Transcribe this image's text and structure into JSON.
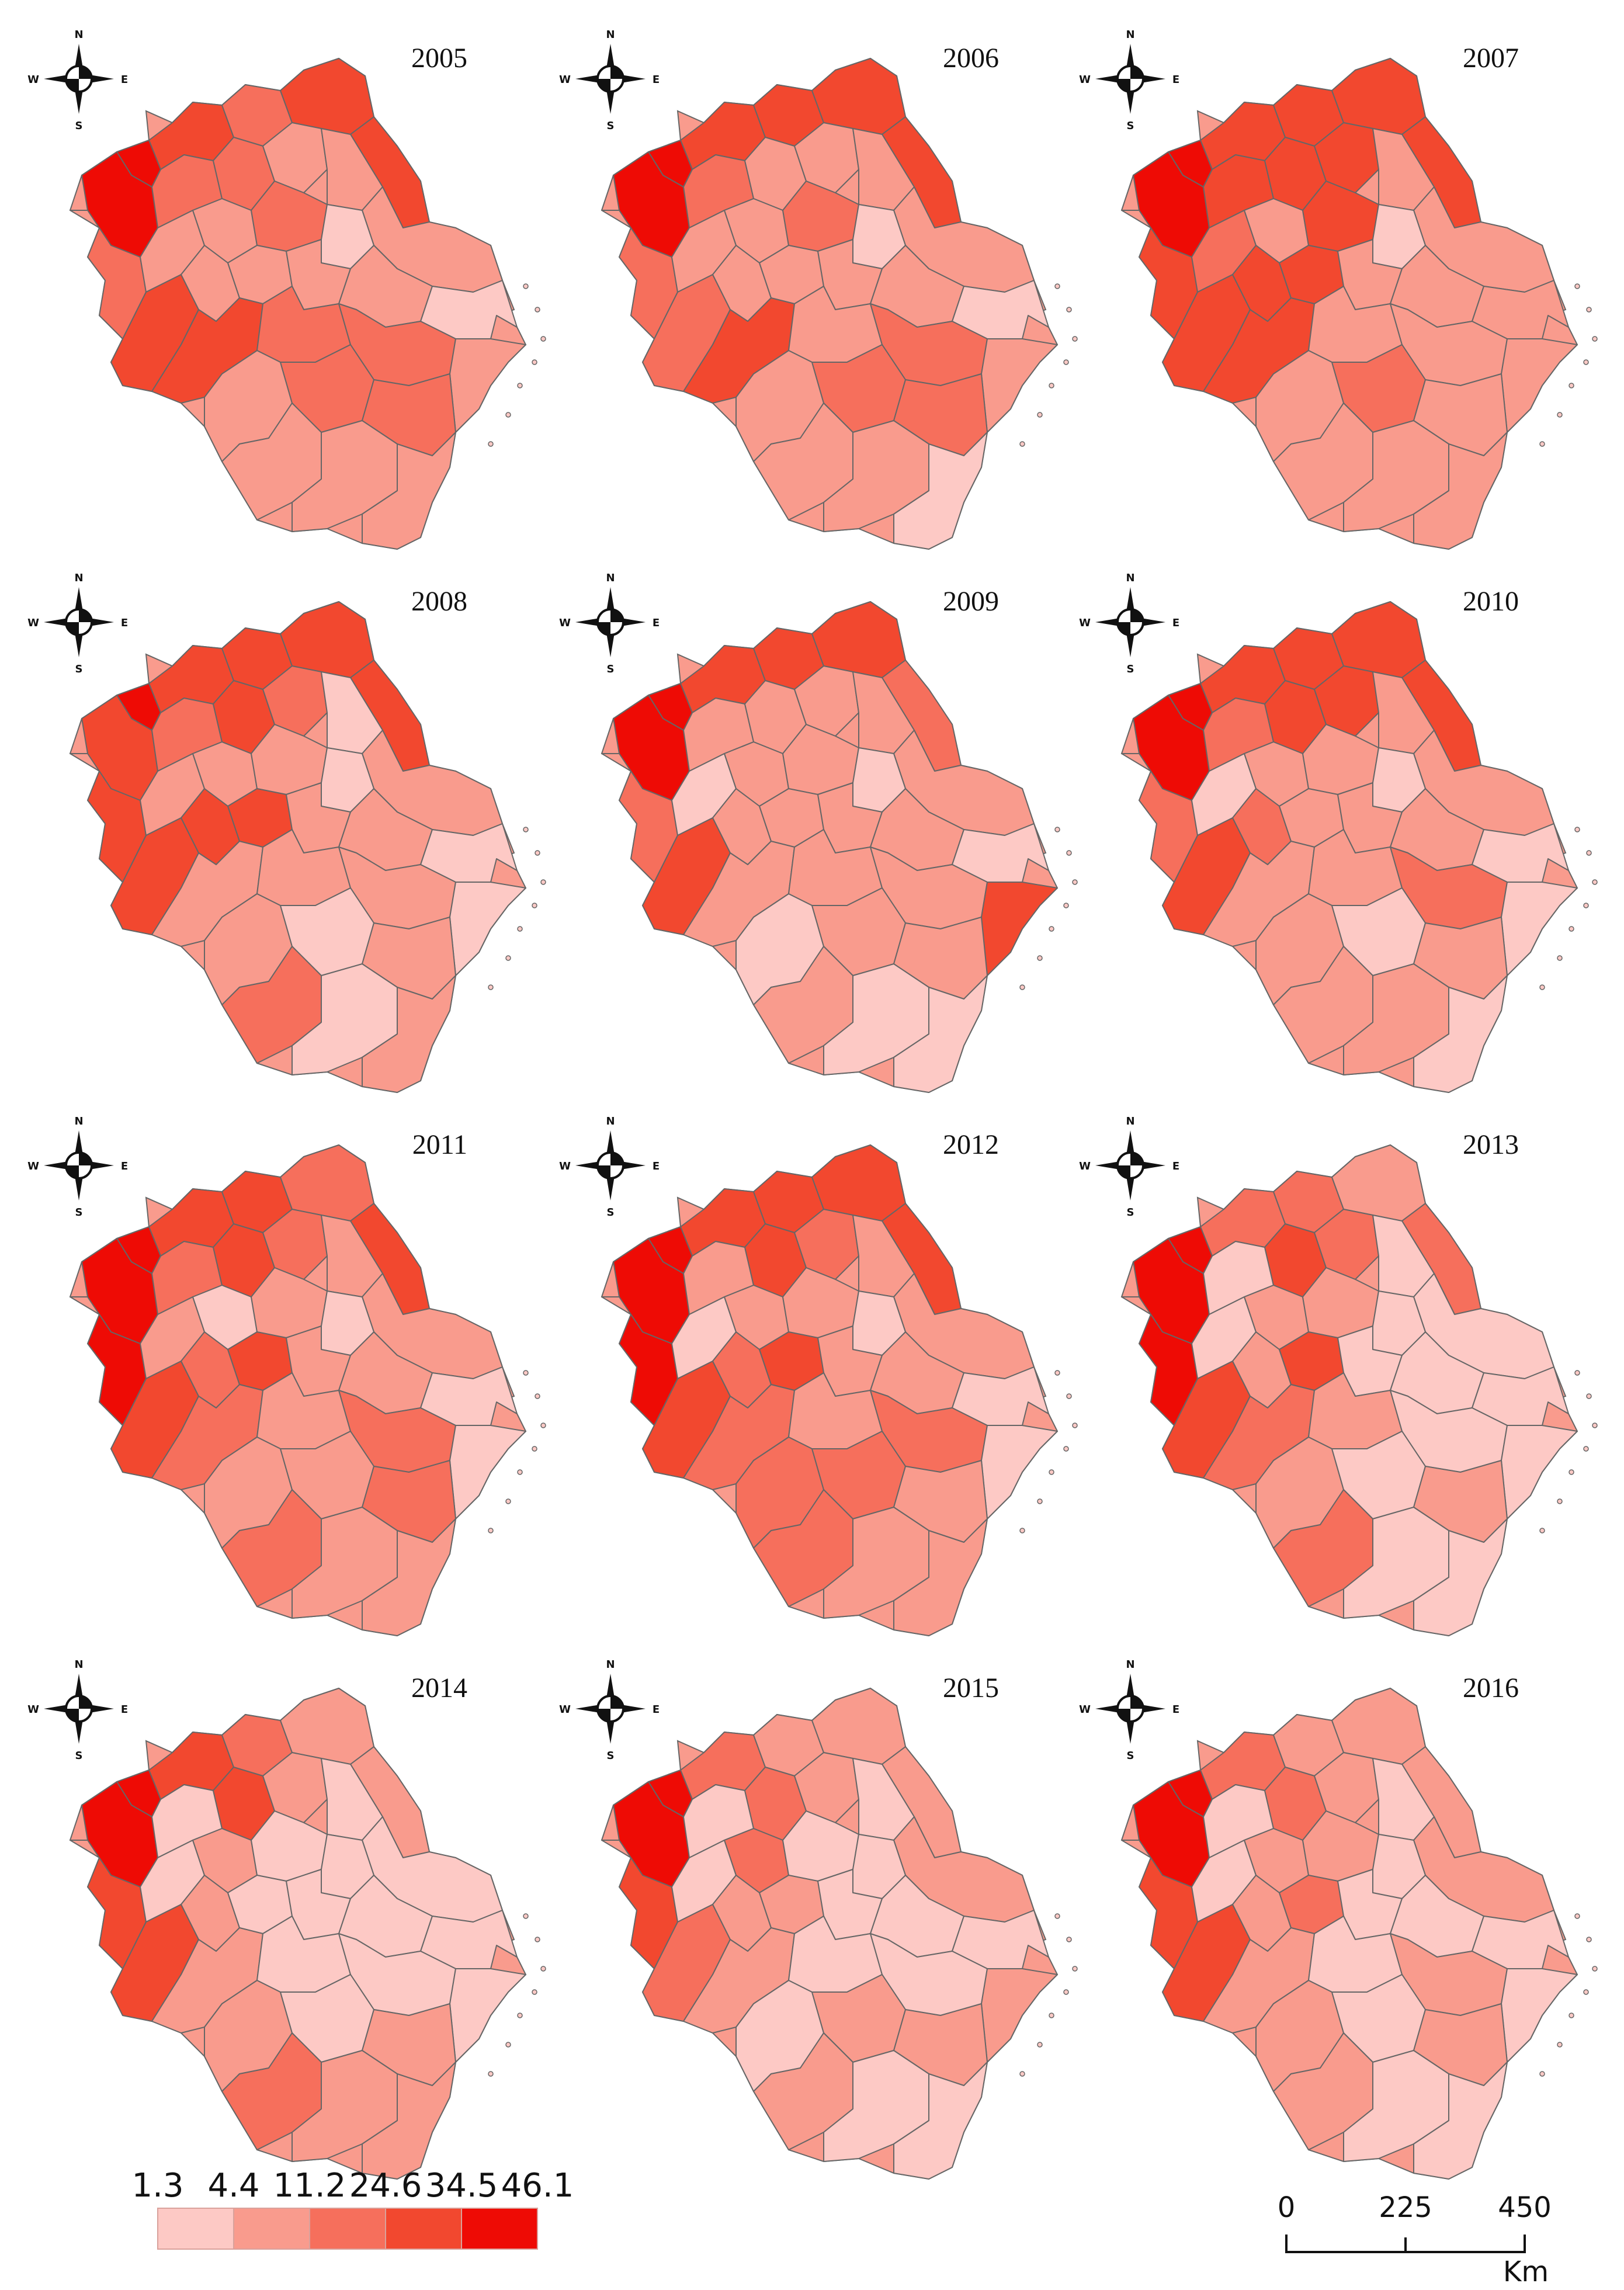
{
  "panels": [
    {
      "year": "2005"
    },
    {
      "year": "2006"
    },
    {
      "year": "2007"
    },
    {
      "year": "2008"
    },
    {
      "year": "2009"
    },
    {
      "year": "2010"
    },
    {
      "year": "2011"
    },
    {
      "year": "2012"
    },
    {
      "year": "2013"
    },
    {
      "year": "2014"
    },
    {
      "year": "2015"
    },
    {
      "year": "2016"
    }
  ],
  "compass": {
    "north": "N",
    "south": "S",
    "west": "W",
    "east": "E"
  },
  "legend": {
    "breaks": [
      "1.3",
      "4.4",
      "11.2",
      "24.6",
      "34.5",
      "46.1"
    ],
    "colors": [
      "#fdc9c5",
      "#f99b8d",
      "#f66f5c",
      "#f2482f",
      "#ee0b05"
    ]
  },
  "scale_bar": {
    "ticks": [
      "0",
      "225",
      "450"
    ],
    "unit": "Km"
  },
  "colors": {
    "boundary": "#666666"
  }
}
